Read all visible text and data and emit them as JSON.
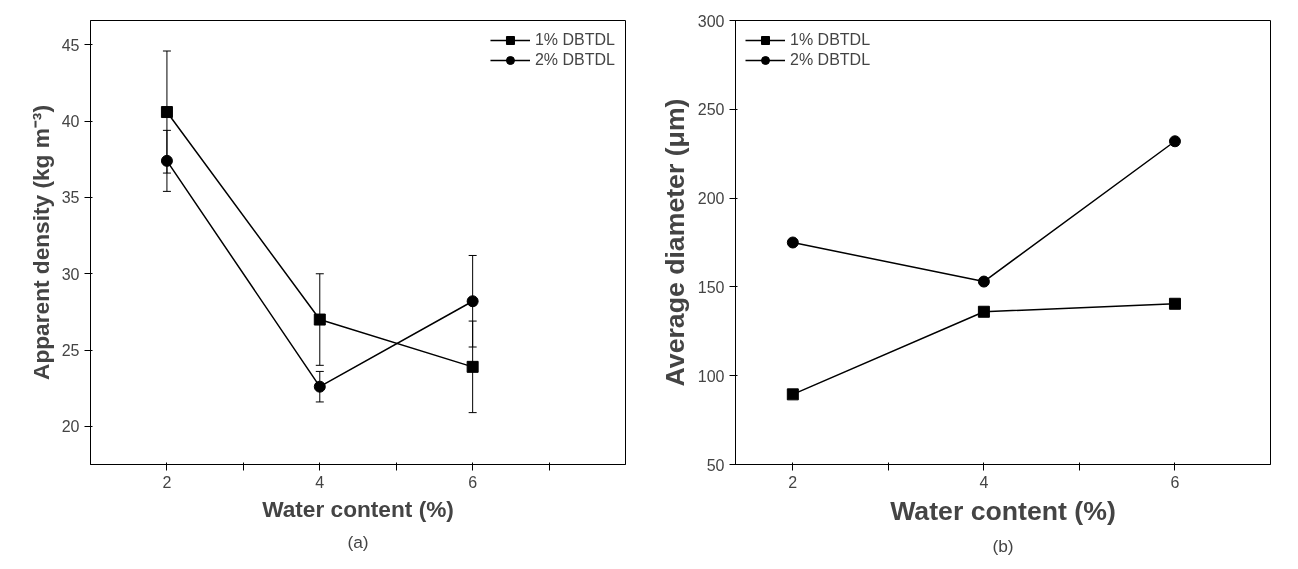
{
  "chart_data": [
    {
      "type": "line",
      "xlabel": "Water content (%)",
      "ylabel": "Apparent density (kg m⁻³)",
      "x": [
        2,
        4,
        6
      ],
      "xlim": [
        1,
        8
      ],
      "xticks": [
        2,
        {
          "value": 3,
          "label": null
        },
        4,
        {
          "value": 5,
          "label": null
        },
        6,
        {
          "value": 7,
          "label": null
        }
      ],
      "ylim": [
        17.5,
        46.6
      ],
      "yticks": [
        20,
        25,
        30,
        35,
        40,
        45
      ],
      "grid": false,
      "legend": "top right",
      "annotations": [
        "(a)"
      ],
      "series": [
        {
          "name": "1% DBTDL",
          "color": "#000000",
          "marker": "square",
          "values": [
            40.6,
            27.0,
            23.9
          ],
          "errors": [
            4.0,
            3.0,
            3.0
          ]
        },
        {
          "name": "2% DBTDL",
          "color": "#000000",
          "marker": "circle",
          "values": [
            37.4,
            22.6,
            28.2
          ],
          "errors": [
            2.0,
            1.0,
            3.0
          ]
        }
      ]
    },
    {
      "type": "line",
      "xlabel": "Water content (%)",
      "ylabel": "Average diameter (μm)",
      "x": [
        2,
        4,
        6
      ],
      "xlim": [
        1.4,
        7
      ],
      "xticks": [
        2,
        {
          "value": 3,
          "label": null
        },
        4,
        {
          "value": 5,
          "label": null
        },
        6
      ],
      "ylim": [
        50,
        300
      ],
      "yticks": [
        50,
        100,
        150,
        200,
        250,
        300
      ],
      "grid": false,
      "legend": "top left",
      "annotations": [
        "(b)"
      ],
      "series": [
        {
          "name": "1% DBTDL",
          "color": "#000000",
          "marker": "square",
          "values": [
            89.5,
            136,
            140.5
          ]
        },
        {
          "name": "2% DBTDL",
          "color": "#000000",
          "marker": "circle",
          "values": [
            175,
            153,
            232
          ]
        }
      ]
    }
  ]
}
